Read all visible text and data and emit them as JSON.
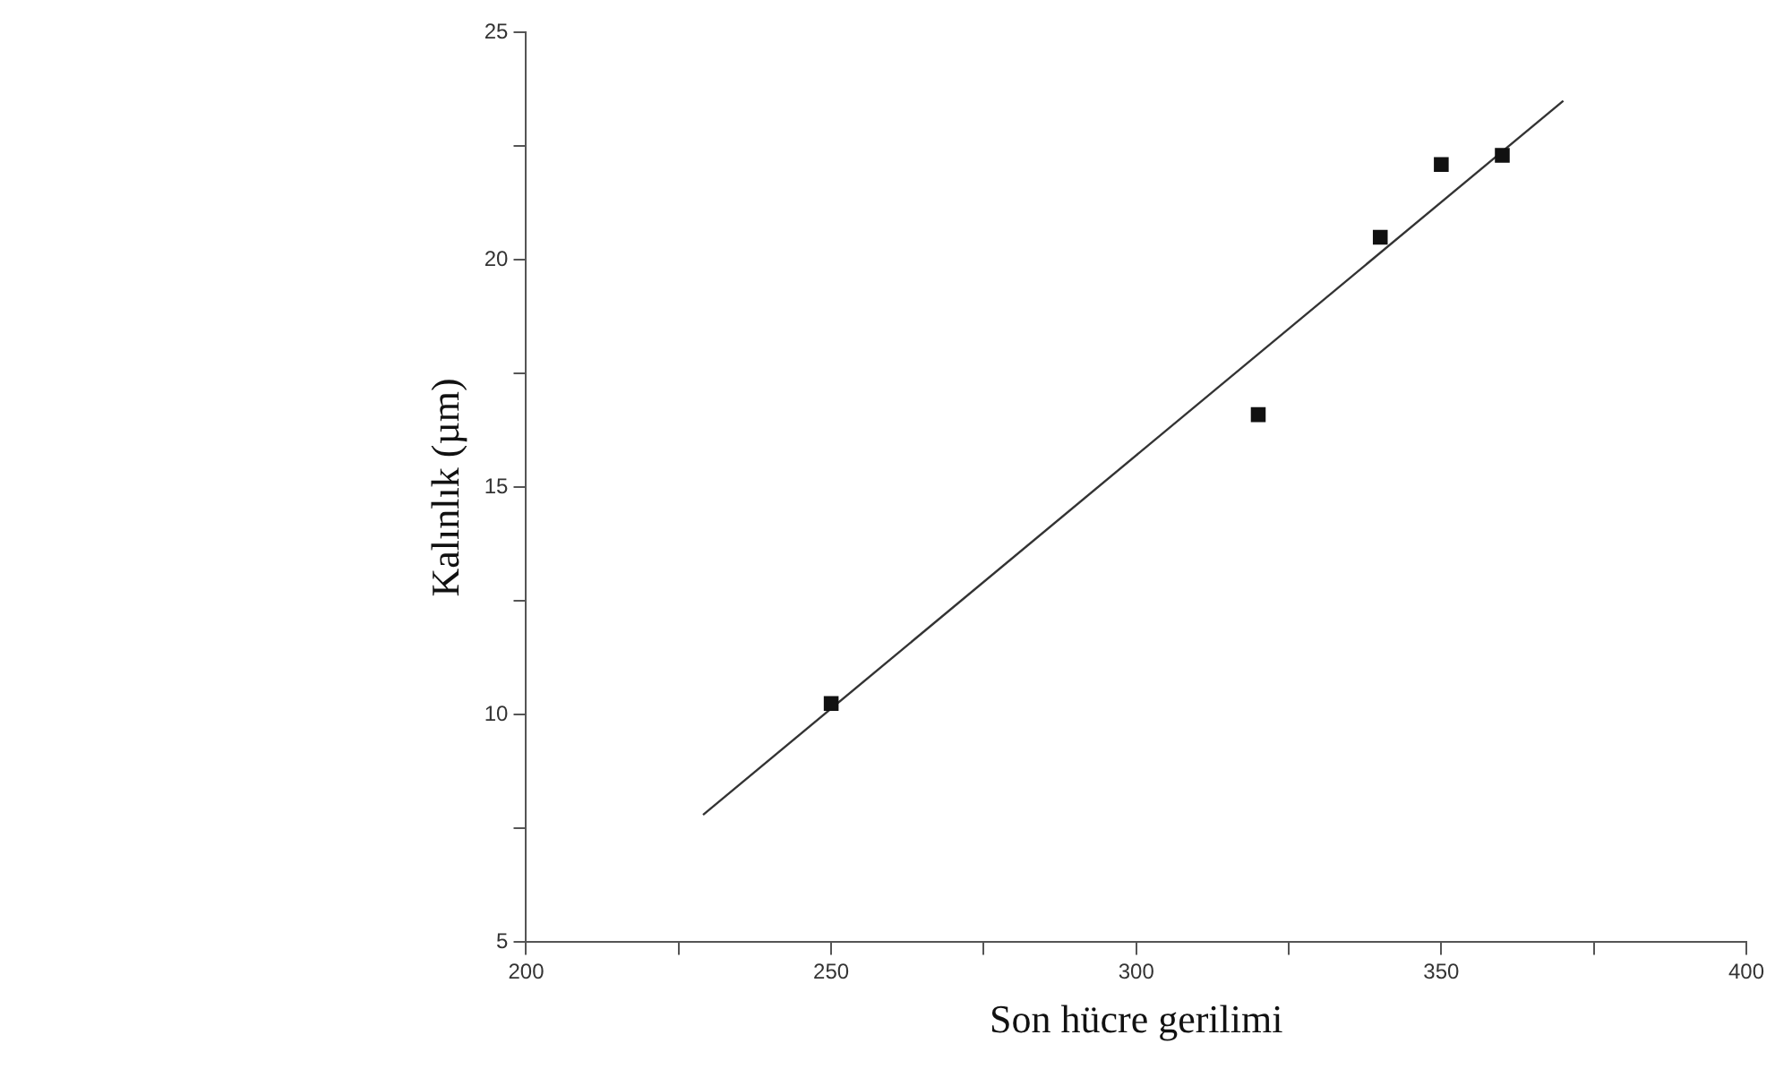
{
  "chart_data": {
    "type": "scatter",
    "xlabel": "Son hücre gerilimi",
    "ylabel": "Kalınlık (µm)",
    "x": [
      250,
      320,
      340,
      350,
      360
    ],
    "series": [
      {
        "color": "#111111",
        "values": [
          10.25,
          16.6,
          20.5,
          22.1,
          22.3
        ],
        "marker": "square"
      },
      {
        "type": "line",
        "color": "#333333",
        "x": [
          229,
          370
        ],
        "values": [
          7.8,
          23.5
        ],
        "marker": "none",
        "line_style": "solid"
      }
    ],
    "xlim": [
      200,
      400
    ],
    "xticks": [
      200,
      {
        "value": 225,
        "label": null
      },
      250,
      {
        "value": 275,
        "label": null
      },
      300,
      {
        "value": 325,
        "label": null
      },
      350,
      {
        "value": 375,
        "label": null
      },
      400
    ],
    "ylim": [
      5,
      25
    ],
    "yticks": [
      5,
      {
        "value": 7.5,
        "label": null
      },
      10,
      {
        "value": 12.5,
        "label": null
      },
      15,
      {
        "value": 17.5,
        "label": null
      },
      20,
      {
        "value": 22.5,
        "label": null
      },
      25
    ],
    "grid": false,
    "legend": false
  }
}
